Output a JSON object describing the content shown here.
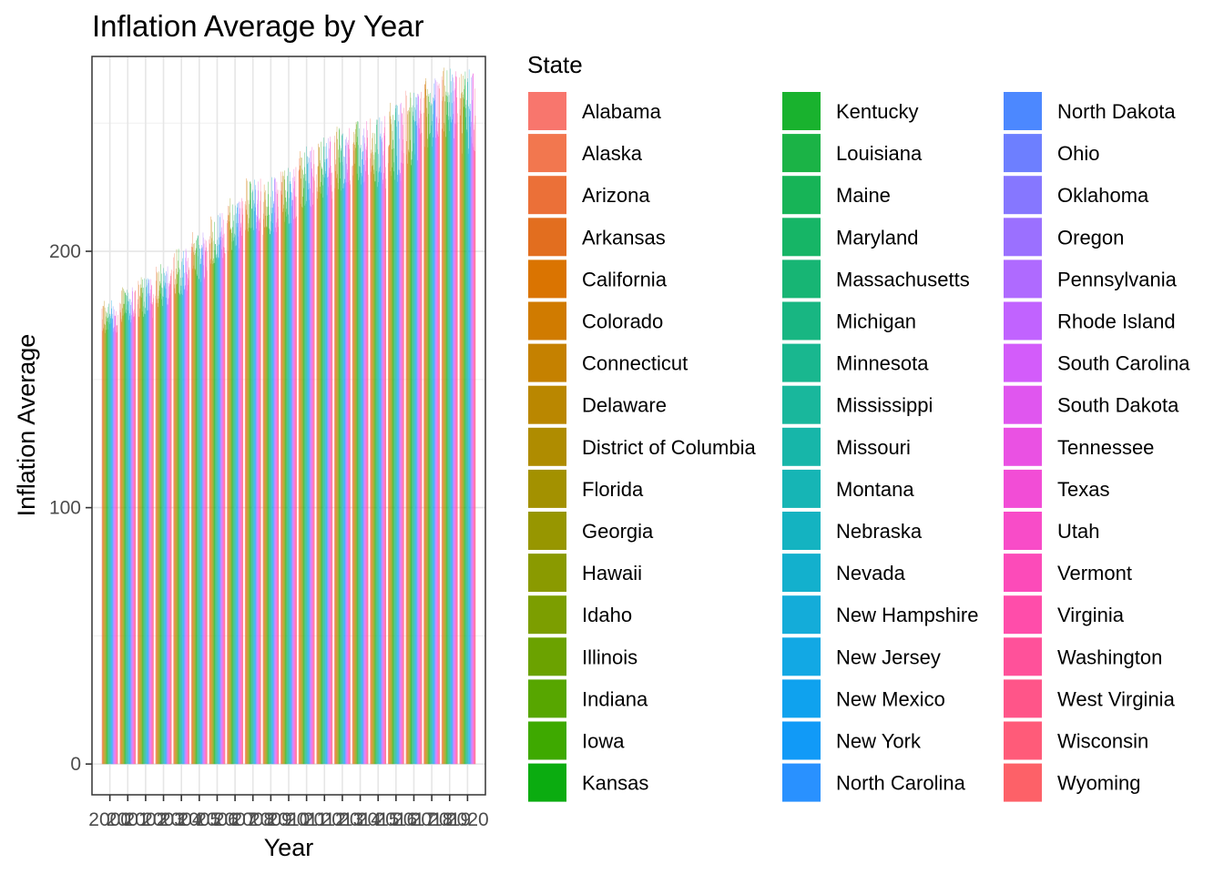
{
  "chart_data": {
    "type": "bar",
    "title": "Inflation Average by Year",
    "xlabel": "Year",
    "ylabel": "Inflation Average",
    "ylim": [
      -12,
      276
    ],
    "yticks": [
      0,
      100,
      200
    ],
    "grid": true,
    "legend_placement": "right",
    "legend_title": "State",
    "categories": [
      "2000",
      "2001",
      "2002",
      "2003",
      "2004",
      "2005",
      "2006",
      "2007",
      "2008",
      "2009",
      "2010",
      "2011",
      "2012",
      "2013",
      "2014",
      "2015",
      "2016",
      "2017",
      "2018",
      "2019",
      "2020"
    ],
    "year_baseline": [
      168,
      172,
      174,
      178,
      182,
      188,
      194,
      200,
      207,
      206,
      210,
      216,
      220,
      223,
      224,
      224,
      227,
      233,
      240,
      244,
      238
    ],
    "year_peak": [
      181,
      186,
      190,
      195,
      201,
      208,
      215,
      221,
      229,
      229,
      233,
      241,
      245,
      249,
      251,
      253,
      258,
      263,
      268,
      272,
      273
    ],
    "series": [
      {
        "name": "Alabama",
        "color": "#F8766D"
      },
      {
        "name": "Alaska",
        "color": "#F2774F"
      },
      {
        "name": "Arizona",
        "color": "#EB7038"
      },
      {
        "name": "Arkansas",
        "color": "#E26E1F"
      },
      {
        "name": "California",
        "color": "#DA7401"
      },
      {
        "name": "Colorado",
        "color": "#D07B00"
      },
      {
        "name": "Connecticut",
        "color": "#C58100"
      },
      {
        "name": "Delaware",
        "color": "#BA8700"
      },
      {
        "name": "District of Columbia",
        "color": "#AF8C00"
      },
      {
        "name": "Florida",
        "color": "#A39100"
      },
      {
        "name": "Georgia",
        "color": "#979600"
      },
      {
        "name": "Hawaii",
        "color": "#8A9A00"
      },
      {
        "name": "Idaho",
        "color": "#7C9E00"
      },
      {
        "name": "Illinois",
        "color": "#6BA200"
      },
      {
        "name": "Indiana",
        "color": "#57A600"
      },
      {
        "name": "Iowa",
        "color": "#3EA900"
      },
      {
        "name": "Kansas",
        "color": "#0BAC10"
      },
      {
        "name": "Kentucky",
        "color": "#19B22E"
      },
      {
        "name": "Louisiana",
        "color": "#1BB346"
      },
      {
        "name": "Maine",
        "color": "#17B457"
      },
      {
        "name": "Maryland",
        "color": "#16B566"
      },
      {
        "name": "Massachusetts",
        "color": "#17B574"
      },
      {
        "name": "Michigan",
        "color": "#18B682"
      },
      {
        "name": "Minnesota",
        "color": "#19B78F"
      },
      {
        "name": "Mississippi",
        "color": "#19B79C"
      },
      {
        "name": "Missouri",
        "color": "#17B6A9"
      },
      {
        "name": "Montana",
        "color": "#16B5B5"
      },
      {
        "name": "Nebraska",
        "color": "#14B3C1"
      },
      {
        "name": "Nevada",
        "color": "#13B0CD"
      },
      {
        "name": "New Hampshire",
        "color": "#14ACD9"
      },
      {
        "name": "New Jersey",
        "color": "#12A8E4"
      },
      {
        "name": "New Mexico",
        "color": "#0FA2EE"
      },
      {
        "name": "New York",
        "color": "#119AF7"
      },
      {
        "name": "North Carolina",
        "color": "#2991FF"
      },
      {
        "name": "North Dakota",
        "color": "#4C88FF"
      },
      {
        "name": "Ohio",
        "color": "#6D7FFF"
      },
      {
        "name": "Oklahoma",
        "color": "#8677FF"
      },
      {
        "name": "Oregon",
        "color": "#9B70FF"
      },
      {
        "name": "Pennsylvania",
        "color": "#AF6AFF"
      },
      {
        "name": "Rhode Island",
        "color": "#C163FF"
      },
      {
        "name": "South Carolina",
        "color": "#D35CFA"
      },
      {
        "name": "South Dakota",
        "color": "#E056EF"
      },
      {
        "name": "Tennessee",
        "color": "#EA51E3"
      },
      {
        "name": "Texas",
        "color": "#F24DD6"
      },
      {
        "name": "Utah",
        "color": "#F84CC8"
      },
      {
        "name": "Vermont",
        "color": "#FC4BB9"
      },
      {
        "name": "Virginia",
        "color": "#FF4DAA"
      },
      {
        "name": "Washington",
        "color": "#FF519A"
      },
      {
        "name": "West Virginia",
        "color": "#FF5589"
      },
      {
        "name": "Wisconsin",
        "color": "#FF5B79"
      },
      {
        "name": "Wyoming",
        "color": "#FD6168"
      }
    ]
  }
}
